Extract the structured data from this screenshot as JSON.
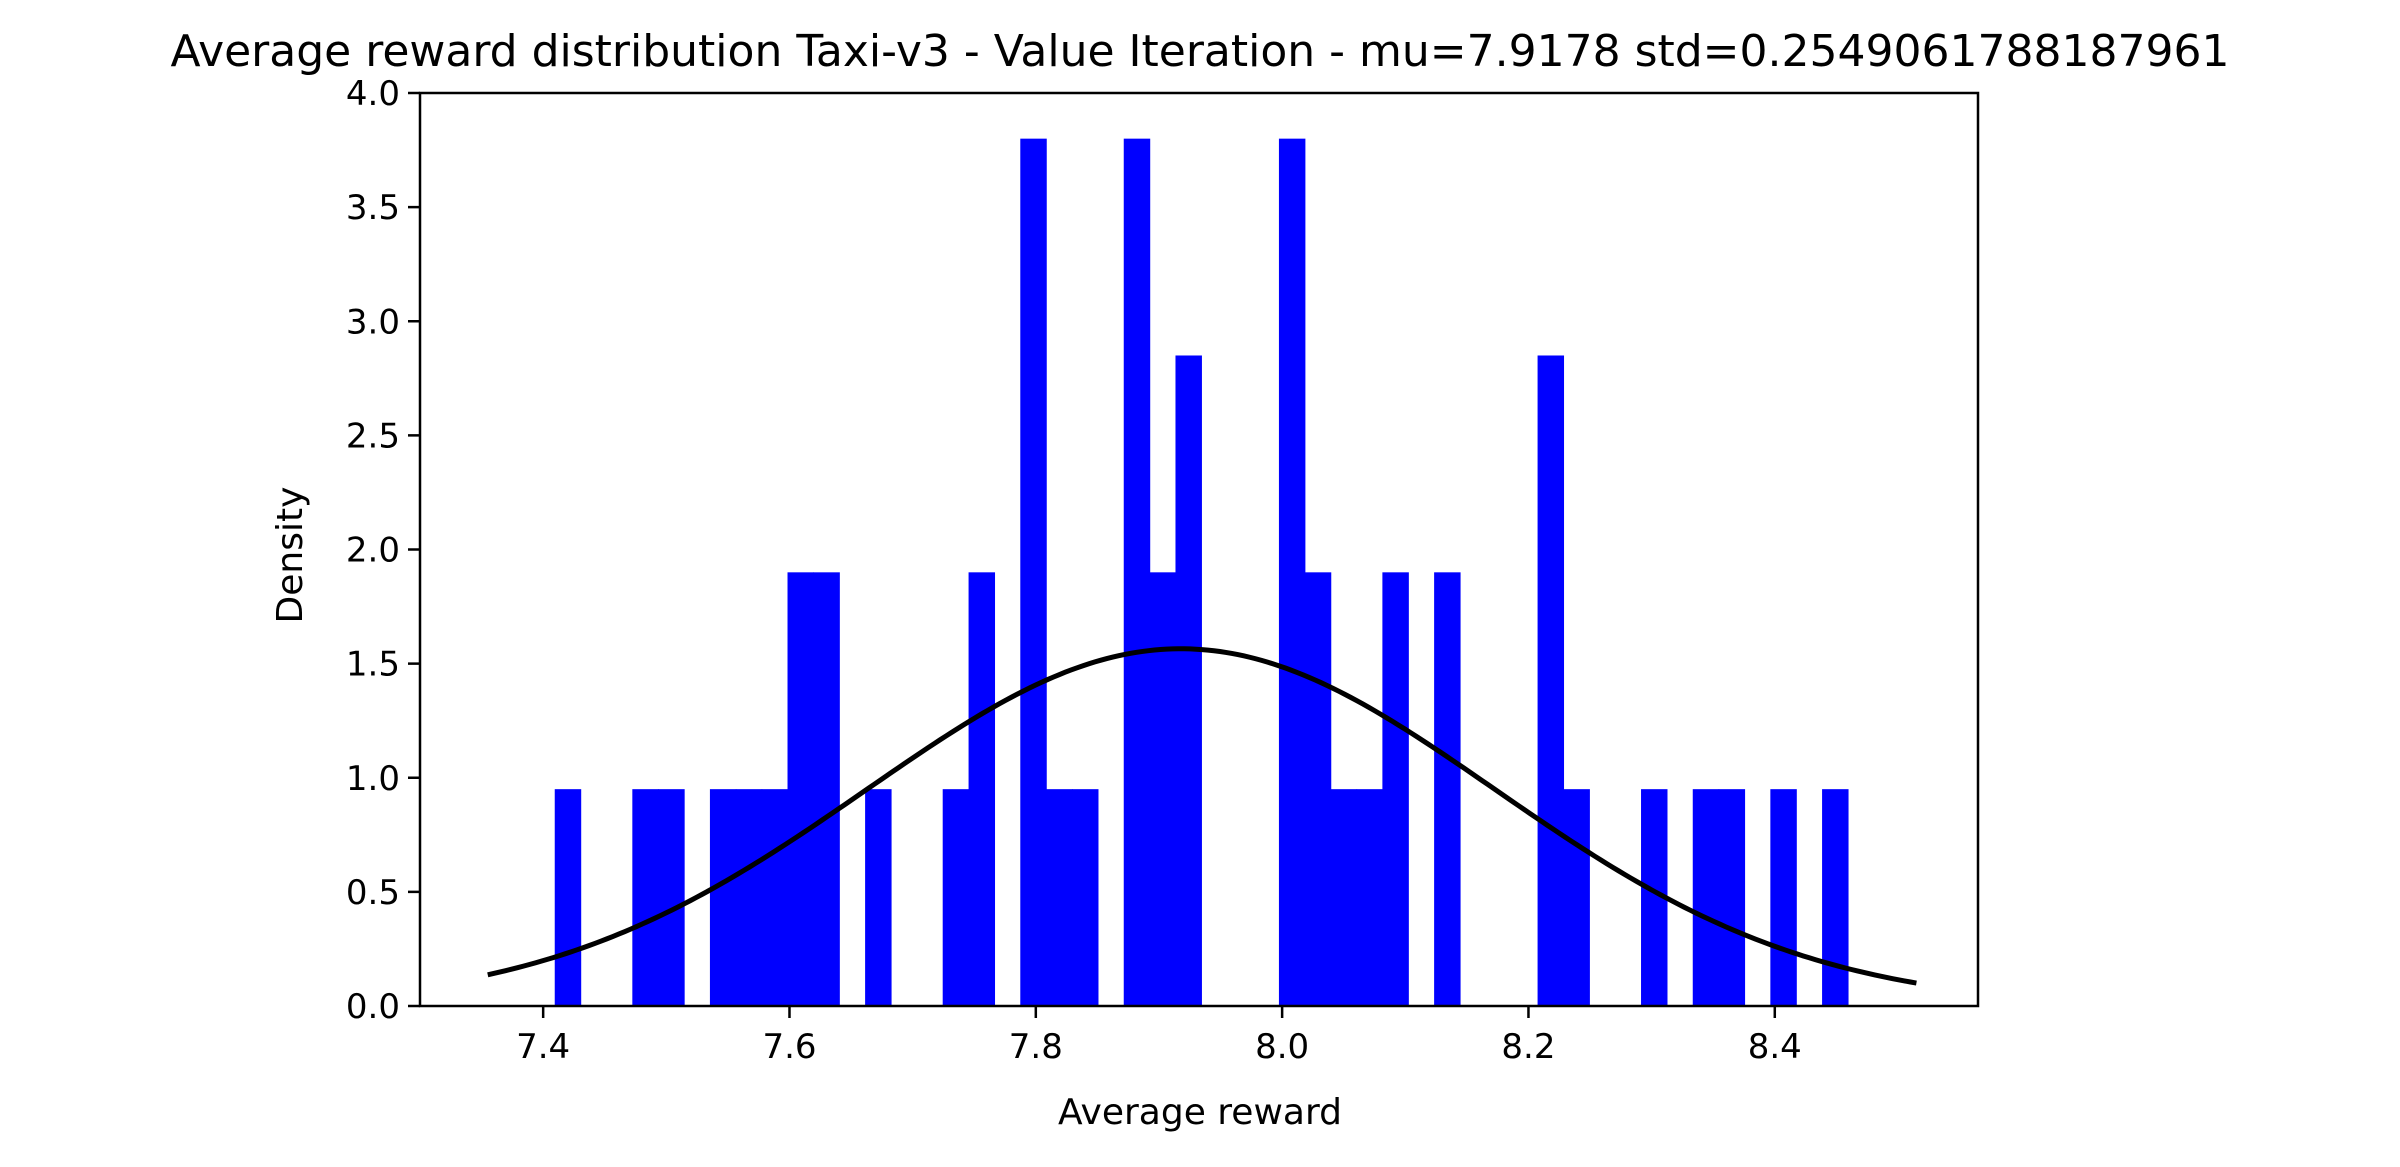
{
  "chart_data": {
    "type": "bar",
    "title": "Average reward distribution Taxi-v3 - Value Iteration - mu=7.9178 std=0.2549061788187961",
    "xlabel": "Average reward",
    "ylabel": "Density",
    "xlim": [
      7.3,
      8.565
    ],
    "ylim": [
      0,
      4.0
    ],
    "xticks": [
      7.4,
      7.6,
      7.8,
      8.0,
      8.2,
      8.4
    ],
    "xtick_labels": [
      "7.4",
      "7.6",
      "7.8",
      "8.0",
      "8.2",
      "8.4"
    ],
    "yticks": [
      0.0,
      0.5,
      1.0,
      1.5,
      2.0,
      2.5,
      3.0,
      3.5,
      4.0
    ],
    "ytick_labels": [
      "0.0",
      "0.5",
      "1.0",
      "1.5",
      "2.0",
      "2.5",
      "3.0",
      "3.5",
      "4.0"
    ],
    "histogram": {
      "bar_color": "#0000ff",
      "bins": [
        {
          "x0": 7.4094,
          "x1": 7.4304,
          "density": 0.95
        },
        {
          "x0": 7.4724,
          "x1": 7.4934,
          "density": 0.95
        },
        {
          "x0": 7.4934,
          "x1": 7.5144,
          "density": 0.95
        },
        {
          "x0": 7.5354,
          "x1": 7.5564,
          "density": 0.95
        },
        {
          "x0": 7.5564,
          "x1": 7.5774,
          "density": 0.95
        },
        {
          "x0": 7.5774,
          "x1": 7.5984,
          "density": 0.95
        },
        {
          "x0": 7.5984,
          "x1": 7.6194,
          "density": 1.9
        },
        {
          "x0": 7.6194,
          "x1": 7.6404,
          "density": 1.9
        },
        {
          "x0": 7.6614,
          "x1": 7.6824,
          "density": 0.95
        },
        {
          "x0": 7.7244,
          "x1": 7.7454,
          "density": 0.95
        },
        {
          "x0": 7.7454,
          "x1": 7.7664,
          "density": 1.9
        },
        {
          "x0": 7.7874,
          "x1": 7.8084,
          "density": 3.8
        },
        {
          "x0": 7.8084,
          "x1": 7.8294,
          "density": 0.95
        },
        {
          "x0": 7.8294,
          "x1": 7.8504,
          "density": 0.95
        },
        {
          "x0": 7.8714,
          "x1": 7.8924,
          "density": 3.8
        },
        {
          "x0": 7.8924,
          "x1": 7.9134,
          "density": 1.9
        },
        {
          "x0": 7.9134,
          "x1": 7.9344,
          "density": 2.85
        },
        {
          "x0": 7.9974,
          "x1": 8.0184,
          "density": 3.8
        },
        {
          "x0": 8.0184,
          "x1": 8.0394,
          "density": 1.9
        },
        {
          "x0": 8.0394,
          "x1": 8.0604,
          "density": 0.95
        },
        {
          "x0": 8.0604,
          "x1": 8.0814,
          "density": 0.95
        },
        {
          "x0": 8.0814,
          "x1": 8.1024,
          "density": 1.9
        },
        {
          "x0": 8.1234,
          "x1": 8.1444,
          "density": 1.9
        },
        {
          "x0": 8.2074,
          "x1": 8.2284,
          "density": 2.85
        },
        {
          "x0": 8.2284,
          "x1": 8.2494,
          "density": 0.95
        },
        {
          "x0": 8.2914,
          "x1": 8.3124,
          "density": 0.95
        },
        {
          "x0": 8.3334,
          "x1": 8.3544,
          "density": 0.95
        },
        {
          "x0": 8.3544,
          "x1": 8.3754,
          "density": 0.95
        },
        {
          "x0": 8.3964,
          "x1": 8.4174,
          "density": 0.95
        },
        {
          "x0": 8.4384,
          "x1": 8.4594,
          "density": 0.95
        }
      ]
    },
    "normal_curve": {
      "color": "#000000",
      "mu": 7.9178,
      "std": 0.2549061788187961,
      "x_range": [
        7.355,
        8.515
      ]
    },
    "grid": false,
    "legend": "none"
  }
}
